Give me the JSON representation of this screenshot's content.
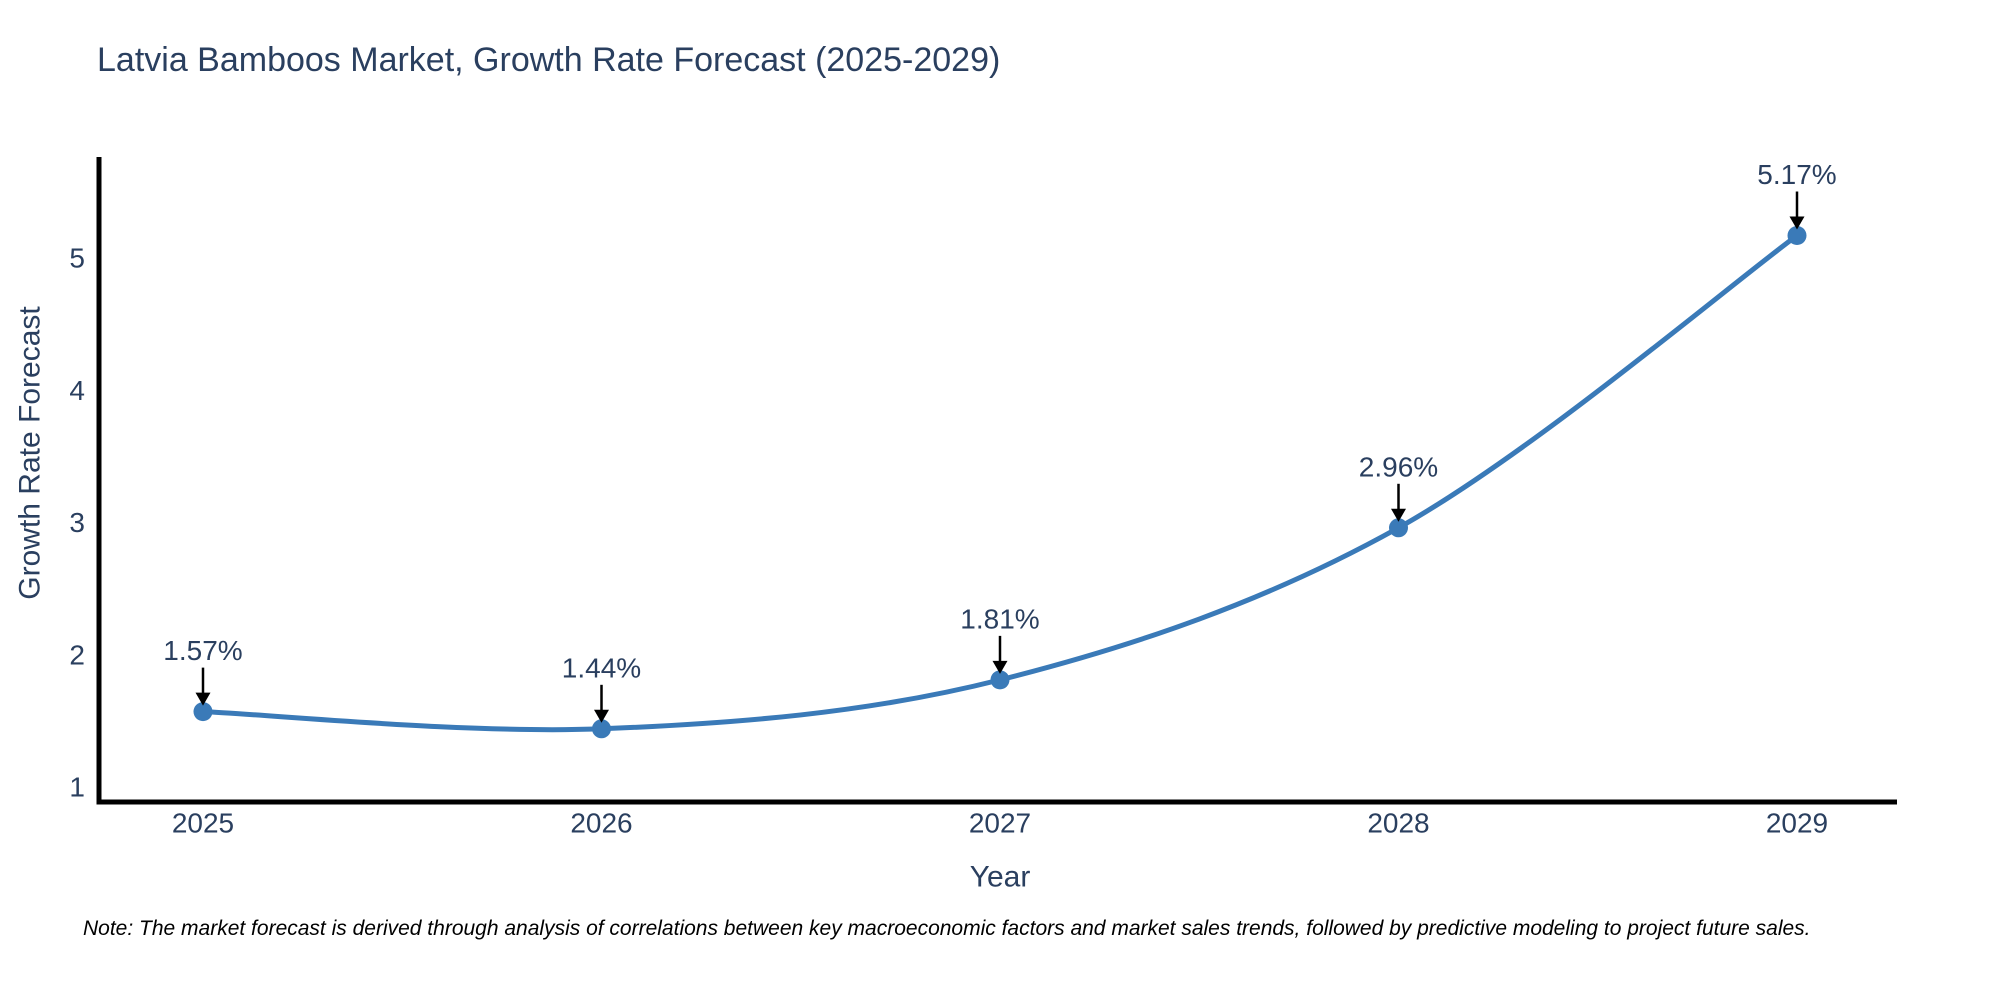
{
  "page": {
    "note": "Note: The market forecast is derived through analysis of correlations between key macroeconomic factors and market sales trends, followed by predictive modeling to project future sales."
  },
  "chart_data": {
    "type": "line",
    "title": "Latvia Bamboos Market, Growth Rate Forecast (2025-2029)",
    "xlabel": "Year",
    "ylabel": "Growth Rate Forecast",
    "x": [
      2025,
      2026,
      2027,
      2028,
      2029
    ],
    "x_tick_labels": [
      "2025",
      "2026",
      "2027",
      "2028",
      "2029"
    ],
    "y_ticks": [
      1,
      2,
      3,
      4,
      5
    ],
    "series": [
      {
        "name": "Growth Rate Forecast",
        "values": [
          1.57,
          1.44,
          1.81,
          2.96,
          5.17
        ]
      }
    ],
    "point_labels": [
      "1.57%",
      "1.44%",
      "1.81%",
      "2.96%",
      "5.17%"
    ],
    "xlim": [
      2024.74,
      2029.25
    ],
    "ylim": [
      0.89,
      5.76
    ],
    "grid": false,
    "legend": "none",
    "curve": "spline",
    "colors": {
      "line": "#3a7ab8",
      "marker": "#3a7ab8",
      "axis": "#000000",
      "title_text": "#2a3f5f",
      "tick_text": "#2a3f5f",
      "axis_title_text": "#2a3f5f",
      "annotation_text": "#2a3f5f",
      "annotation_arrow": "#000000",
      "note_text": "#000000",
      "background": "#ffffff"
    }
  }
}
